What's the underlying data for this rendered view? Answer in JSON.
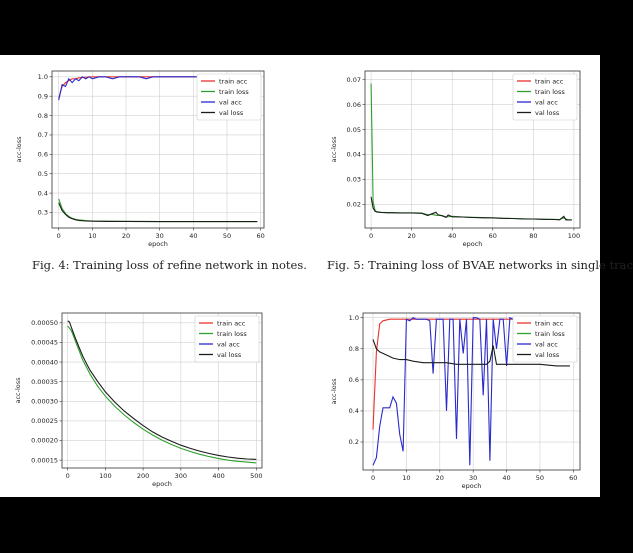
{
  "captions": {
    "fig4": "Fig. 4: Training loss of refine network in notes.",
    "fig5": "Fig. 5: Training loss of BVAE networks in single trac"
  },
  "colors": {
    "train_acc": "#e8322f",
    "train_loss": "#2ea02c",
    "val_acc": "#2a2acb",
    "val_loss": "#1c1c1c"
  },
  "chart_data": [
    {
      "type": "line",
      "xlabel": "epoch",
      "ylabel": "acc-loss",
      "xlim": [
        -2,
        61
      ],
      "ylim": [
        0.22,
        1.03
      ],
      "xticks": [
        0,
        10,
        20,
        30,
        40,
        50,
        60
      ],
      "yticks": [
        0.3,
        0.4,
        0.5,
        0.6,
        0.7,
        0.8,
        0.9,
        1.0
      ],
      "ytick_labels": [
        "0.3",
        "0.4",
        "0.5",
        "0.6",
        "0.7",
        "0.8",
        "0.9",
        "1.0"
      ],
      "grid": true,
      "legend": "top-right",
      "series": [
        {
          "name": "train acc",
          "color": "#e8322f",
          "x": [
            0,
            1,
            2,
            3,
            4,
            5,
            6,
            8,
            10,
            15,
            20,
            25,
            30,
            40,
            50,
            59
          ],
          "y": [
            0.89,
            0.95,
            0.97,
            0.98,
            0.99,
            0.99,
            0.995,
            0.998,
            1.0,
            1.0,
            1.0,
            1.0,
            1.0,
            1.0,
            1.0,
            1.0
          ]
        },
        {
          "name": "train loss",
          "color": "#2ea02c",
          "x": [
            0,
            1,
            2,
            3,
            4,
            5,
            6,
            8,
            10,
            15,
            20,
            30,
            40,
            50,
            59
          ],
          "y": [
            0.37,
            0.32,
            0.295,
            0.28,
            0.27,
            0.265,
            0.262,
            0.258,
            0.256,
            0.255,
            0.254,
            0.253,
            0.253,
            0.253,
            0.253
          ]
        },
        {
          "name": "val acc",
          "color": "#2a2acb",
          "x": [
            0,
            1,
            2,
            3,
            4,
            5,
            6,
            7,
            8,
            9,
            10,
            12,
            14,
            16,
            18,
            20,
            24,
            26,
            28,
            30,
            34,
            38,
            40,
            44,
            47
          ],
          "y": [
            0.88,
            0.96,
            0.95,
            0.99,
            0.97,
            0.99,
            0.98,
            1.0,
            0.99,
            1.0,
            0.99,
            1.0,
            1.0,
            0.99,
            1.0,
            1.0,
            1.0,
            0.99,
            1.0,
            1.0,
            1.0,
            1.0,
            1.0,
            1.0,
            1.0
          ]
        },
        {
          "name": "val loss",
          "color": "#1c1c1c",
          "x": [
            0,
            1,
            2,
            3,
            4,
            5,
            6,
            8,
            10,
            15,
            20,
            30,
            40,
            50,
            59
          ],
          "y": [
            0.35,
            0.31,
            0.29,
            0.275,
            0.268,
            0.262,
            0.259,
            0.256,
            0.255,
            0.254,
            0.254,
            0.253,
            0.253,
            0.253,
            0.253
          ]
        }
      ]
    },
    {
      "type": "line",
      "xlabel": "epoch",
      "ylabel": "acc-loss",
      "xlim": [
        -3,
        103
      ],
      "ylim": [
        0.0105,
        0.0735
      ],
      "xticks": [
        0,
        20,
        40,
        60,
        80,
        100
      ],
      "yticks": [
        0.02,
        0.03,
        0.04,
        0.05,
        0.06,
        0.07
      ],
      "ytick_labels": [
        "0.02",
        "0.03",
        "0.04",
        "0.05",
        "0.06",
        "0.07"
      ],
      "grid": true,
      "legend": "top-right",
      "series": [
        {
          "name": "train acc",
          "color": "#e8322f",
          "x": [],
          "y": []
        },
        {
          "name": "train loss",
          "color": "#2ea02c",
          "x": [
            0,
            1,
            2,
            3,
            5,
            8,
            10,
            15,
            20,
            25,
            28,
            30,
            32,
            35,
            37,
            40,
            45,
            50,
            55,
            60,
            65,
            70,
            75,
            80,
            85,
            90,
            93,
            95,
            97,
            99
          ],
          "y": [
            0.0685,
            0.021,
            0.0175,
            0.017,
            0.0168,
            0.0167,
            0.0167,
            0.0166,
            0.0166,
            0.0165,
            0.0158,
            0.016,
            0.0156,
            0.0155,
            0.0149,
            0.0152,
            0.0149,
            0.0148,
            0.0147,
            0.0145,
            0.0144,
            0.0143,
            0.0142,
            0.0141,
            0.014,
            0.014,
            0.0139,
            0.0146,
            0.0138,
            0.0138
          ]
        },
        {
          "name": "val acc",
          "color": "#2a2acb",
          "x": [],
          "y": []
        },
        {
          "name": "val loss",
          "color": "#1c1c1c",
          "x": [
            0,
            1,
            2,
            3,
            5,
            8,
            10,
            15,
            20,
            25,
            28,
            30,
            32,
            33,
            35,
            37,
            38,
            40,
            45,
            50,
            55,
            60,
            65,
            70,
            75,
            80,
            85,
            90,
            93,
            95,
            96,
            97,
            99
          ],
          "y": [
            0.023,
            0.0185,
            0.0172,
            0.0169,
            0.0167,
            0.0166,
            0.0166,
            0.0165,
            0.0165,
            0.0164,
            0.0155,
            0.0162,
            0.0168,
            0.0158,
            0.0154,
            0.0148,
            0.0157,
            0.015,
            0.0149,
            0.0147,
            0.0146,
            0.0146,
            0.0144,
            0.0143,
            0.0141,
            0.0141,
            0.014,
            0.0139,
            0.0138,
            0.0152,
            0.0138,
            0.0137,
            0.0137
          ]
        }
      ]
    },
    {
      "type": "line",
      "xlabel": "epoch",
      "ylabel": "acc-loss",
      "xlim": [
        -15,
        515
      ],
      "ylim": [
        0.00013,
        0.000525
      ],
      "xticks": [
        0,
        100,
        200,
        300,
        400,
        500
      ],
      "yticks": [
        0.00015,
        0.0002,
        0.00025,
        0.0003,
        0.00035,
        0.0004,
        0.00045,
        0.0005
      ],
      "ytick_labels": [
        "0.00015",
        "0.00020",
        "0.00025",
        "0.00030",
        "0.00035",
        "0.00040",
        "0.00045",
        "0.00050"
      ],
      "grid": true,
      "legend": "top-right",
      "series": [
        {
          "name": "train acc",
          "color": "#e8322f",
          "x": [],
          "y": []
        },
        {
          "name": "train loss",
          "color": "#2ea02c",
          "x": [
            0,
            10,
            20,
            40,
            60,
            80,
            100,
            125,
            150,
            175,
            200,
            225,
            250,
            275,
            300,
            325,
            350,
            375,
            400,
            425,
            450,
            475,
            500
          ],
          "y": [
            0.000492,
            0.00048,
            0.000455,
            0.000405,
            0.000368,
            0.000338,
            0.000313,
            0.000287,
            0.000265,
            0.000246,
            0.000229,
            0.000214,
            0.000201,
            0.00019,
            0.00018,
            0.000172,
            0.000165,
            0.000159,
            0.000154,
            0.00015,
            0.000147,
            0.000145,
            0.000143
          ]
        },
        {
          "name": "val acc",
          "color": "#2a2acb",
          "x": [],
          "y": []
        },
        {
          "name": "val loss",
          "color": "#1c1c1c",
          "x": [
            0,
            5,
            10,
            20,
            30,
            40,
            50,
            60,
            70,
            80,
            90,
            100,
            125,
            150,
            175,
            200,
            225,
            250,
            275,
            300,
            325,
            350,
            375,
            400,
            425,
            450,
            475,
            500
          ],
          "y": [
            0.000505,
            0.000502,
            0.000488,
            0.000462,
            0.000438,
            0.000415,
            0.000396,
            0.000378,
            0.000364,
            0.00035,
            0.000337,
            0.000324,
            0.000298,
            0.000275,
            0.000256,
            0.000238,
            0.000222,
            0.000209,
            0.000198,
            0.000188,
            0.00018,
            0.000173,
            0.000167,
            0.000162,
            0.000158,
            0.000155,
            0.000153,
            0.000152
          ]
        }
      ]
    },
    {
      "type": "line",
      "xlabel": "epoch",
      "ylabel": "acc-loss",
      "xlim": [
        -3,
        62
      ],
      "ylim": [
        0.02,
        1.03
      ],
      "xticks": [
        0,
        10,
        20,
        30,
        40,
        50,
        60
      ],
      "yticks": [
        0.2,
        0.4,
        0.6,
        0.8,
        1.0
      ],
      "ytick_labels": [
        "0.2",
        "0.4",
        "0.6",
        "0.8",
        "1.0"
      ],
      "grid": true,
      "legend": "top-right",
      "series": [
        {
          "name": "train acc",
          "color": "#e8322f",
          "x": [
            0,
            1,
            2,
            3,
            5,
            8,
            10,
            15,
            20,
            30,
            35,
            40,
            45
          ],
          "y": [
            0.28,
            0.78,
            0.96,
            0.98,
            0.99,
            0.99,
            0.99,
            0.99,
            0.99,
            0.99,
            0.99,
            0.99,
            0.99
          ]
        },
        {
          "name": "train loss",
          "color": "#2ea02c",
          "x": [],
          "y": []
        },
        {
          "name": "val acc",
          "color": "#2a2acb",
          "x": [
            0,
            1,
            2,
            3,
            4,
            5,
            6,
            7,
            8,
            9,
            10,
            11,
            12,
            13,
            14,
            15,
            16,
            17,
            18,
            19,
            20,
            21,
            22,
            23,
            24,
            25,
            26,
            27,
            28,
            29,
            30,
            31,
            32,
            33,
            34,
            35,
            36,
            37,
            38,
            39,
            40,
            41,
            42,
            43,
            44,
            45,
            46
          ],
          "y": [
            0.05,
            0.1,
            0.3,
            0.42,
            0.42,
            0.42,
            0.49,
            0.45,
            0.25,
            0.14,
            0.99,
            0.98,
            1.0,
            0.99,
            0.99,
            0.99,
            0.99,
            0.98,
            0.64,
            0.99,
            0.99,
            0.99,
            0.4,
            0.99,
            0.99,
            0.22,
            0.99,
            0.77,
            0.99,
            0.05,
            1.0,
            1.0,
            0.99,
            0.5,
            0.99,
            0.08,
            0.99,
            0.8,
            0.99,
            0.99,
            0.69,
            1.0,
            0.99,
            0.99,
            0.99,
            0.99,
            0.99
          ]
        },
        {
          "name": "val loss",
          "color": "#1c1c1c",
          "x": [
            0,
            1,
            2,
            3,
            4,
            5,
            6,
            8,
            10,
            12,
            15,
            18,
            20,
            22,
            25,
            28,
            30,
            32,
            34,
            35,
            36,
            37,
            38,
            40,
            45,
            50,
            55,
            59
          ],
          "y": [
            0.86,
            0.8,
            0.78,
            0.77,
            0.76,
            0.75,
            0.74,
            0.73,
            0.73,
            0.72,
            0.71,
            0.71,
            0.71,
            0.71,
            0.7,
            0.7,
            0.7,
            0.7,
            0.7,
            0.72,
            0.82,
            0.7,
            0.7,
            0.7,
            0.7,
            0.7,
            0.69,
            0.69
          ]
        }
      ]
    }
  ]
}
